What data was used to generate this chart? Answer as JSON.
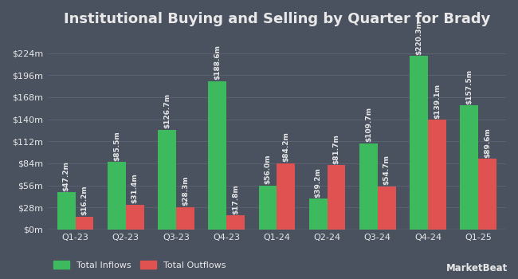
{
  "title": "Institutional Buying and Selling by Quarter for Brady",
  "quarters": [
    "Q1-23",
    "Q2-23",
    "Q3-23",
    "Q4-23",
    "Q1-24",
    "Q2-24",
    "Q3-24",
    "Q4-24",
    "Q1-25"
  ],
  "inflows": [
    47.2,
    85.5,
    126.7,
    188.6,
    56.0,
    39.2,
    109.7,
    220.3,
    157.5
  ],
  "outflows": [
    16.2,
    31.4,
    28.3,
    17.8,
    84.2,
    81.7,
    54.7,
    139.1,
    89.6
  ],
  "inflow_color": "#3dba5e",
  "outflow_color": "#e05252",
  "background_color": "#4a515f",
  "plot_bg_color": "#4a515f",
  "text_color": "#e8e8e8",
  "grid_color": "#5d6474",
  "yticks": [
    0,
    28,
    56,
    84,
    112,
    140,
    168,
    196,
    224
  ],
  "ytick_labels": [
    "$0m",
    "$28m",
    "$56m",
    "$84m",
    "$112m",
    "$140m",
    "$168m",
    "$196m",
    "$224m"
  ],
  "ylim": [
    0,
    248
  ],
  "bar_width": 0.36,
  "title_fontsize": 13,
  "label_fontsize": 6.5,
  "tick_fontsize": 8,
  "legend_fontsize": 8,
  "marketbeat_text": "MarketBeat"
}
